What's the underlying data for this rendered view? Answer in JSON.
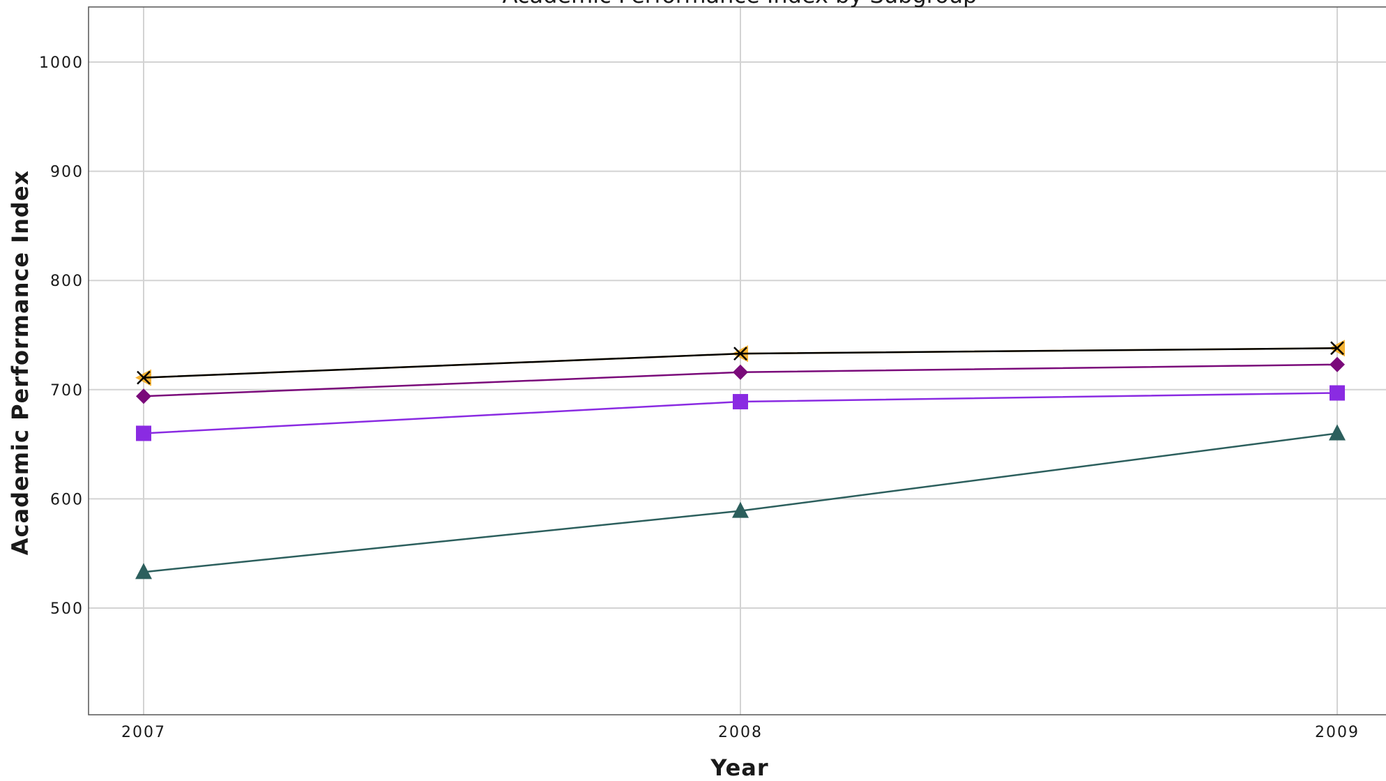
{
  "chart_data": {
    "type": "line",
    "title": "Academic Performance Index by Subgroup",
    "xlabel": "Year",
    "ylabel": "Academic Performance Index",
    "x": [
      2007,
      2008,
      2009
    ],
    "xtick_labels": [
      "2007",
      "2008",
      "2009"
    ],
    "ylim": [
      400,
      1050
    ],
    "yticks": [
      500,
      600,
      700,
      800,
      900,
      1000
    ],
    "grid": true,
    "legend": "none visible",
    "series": [
      {
        "marker": "x",
        "color": "#000000",
        "values": [
          711,
          733,
          738
        ]
      },
      {
        "marker": "triangle-left",
        "color": "#F5B335",
        "values": [
          711,
          733,
          738
        ]
      },
      {
        "marker": "diamond",
        "color": "#7A0A7A",
        "values": [
          694,
          716,
          723
        ]
      },
      {
        "marker": "square",
        "color": "#8A2BE2",
        "values": [
          660,
          689,
          697
        ]
      },
      {
        "marker": "triangle-up",
        "color": "#2C5F5D",
        "values": [
          533,
          589,
          660
        ]
      }
    ]
  }
}
